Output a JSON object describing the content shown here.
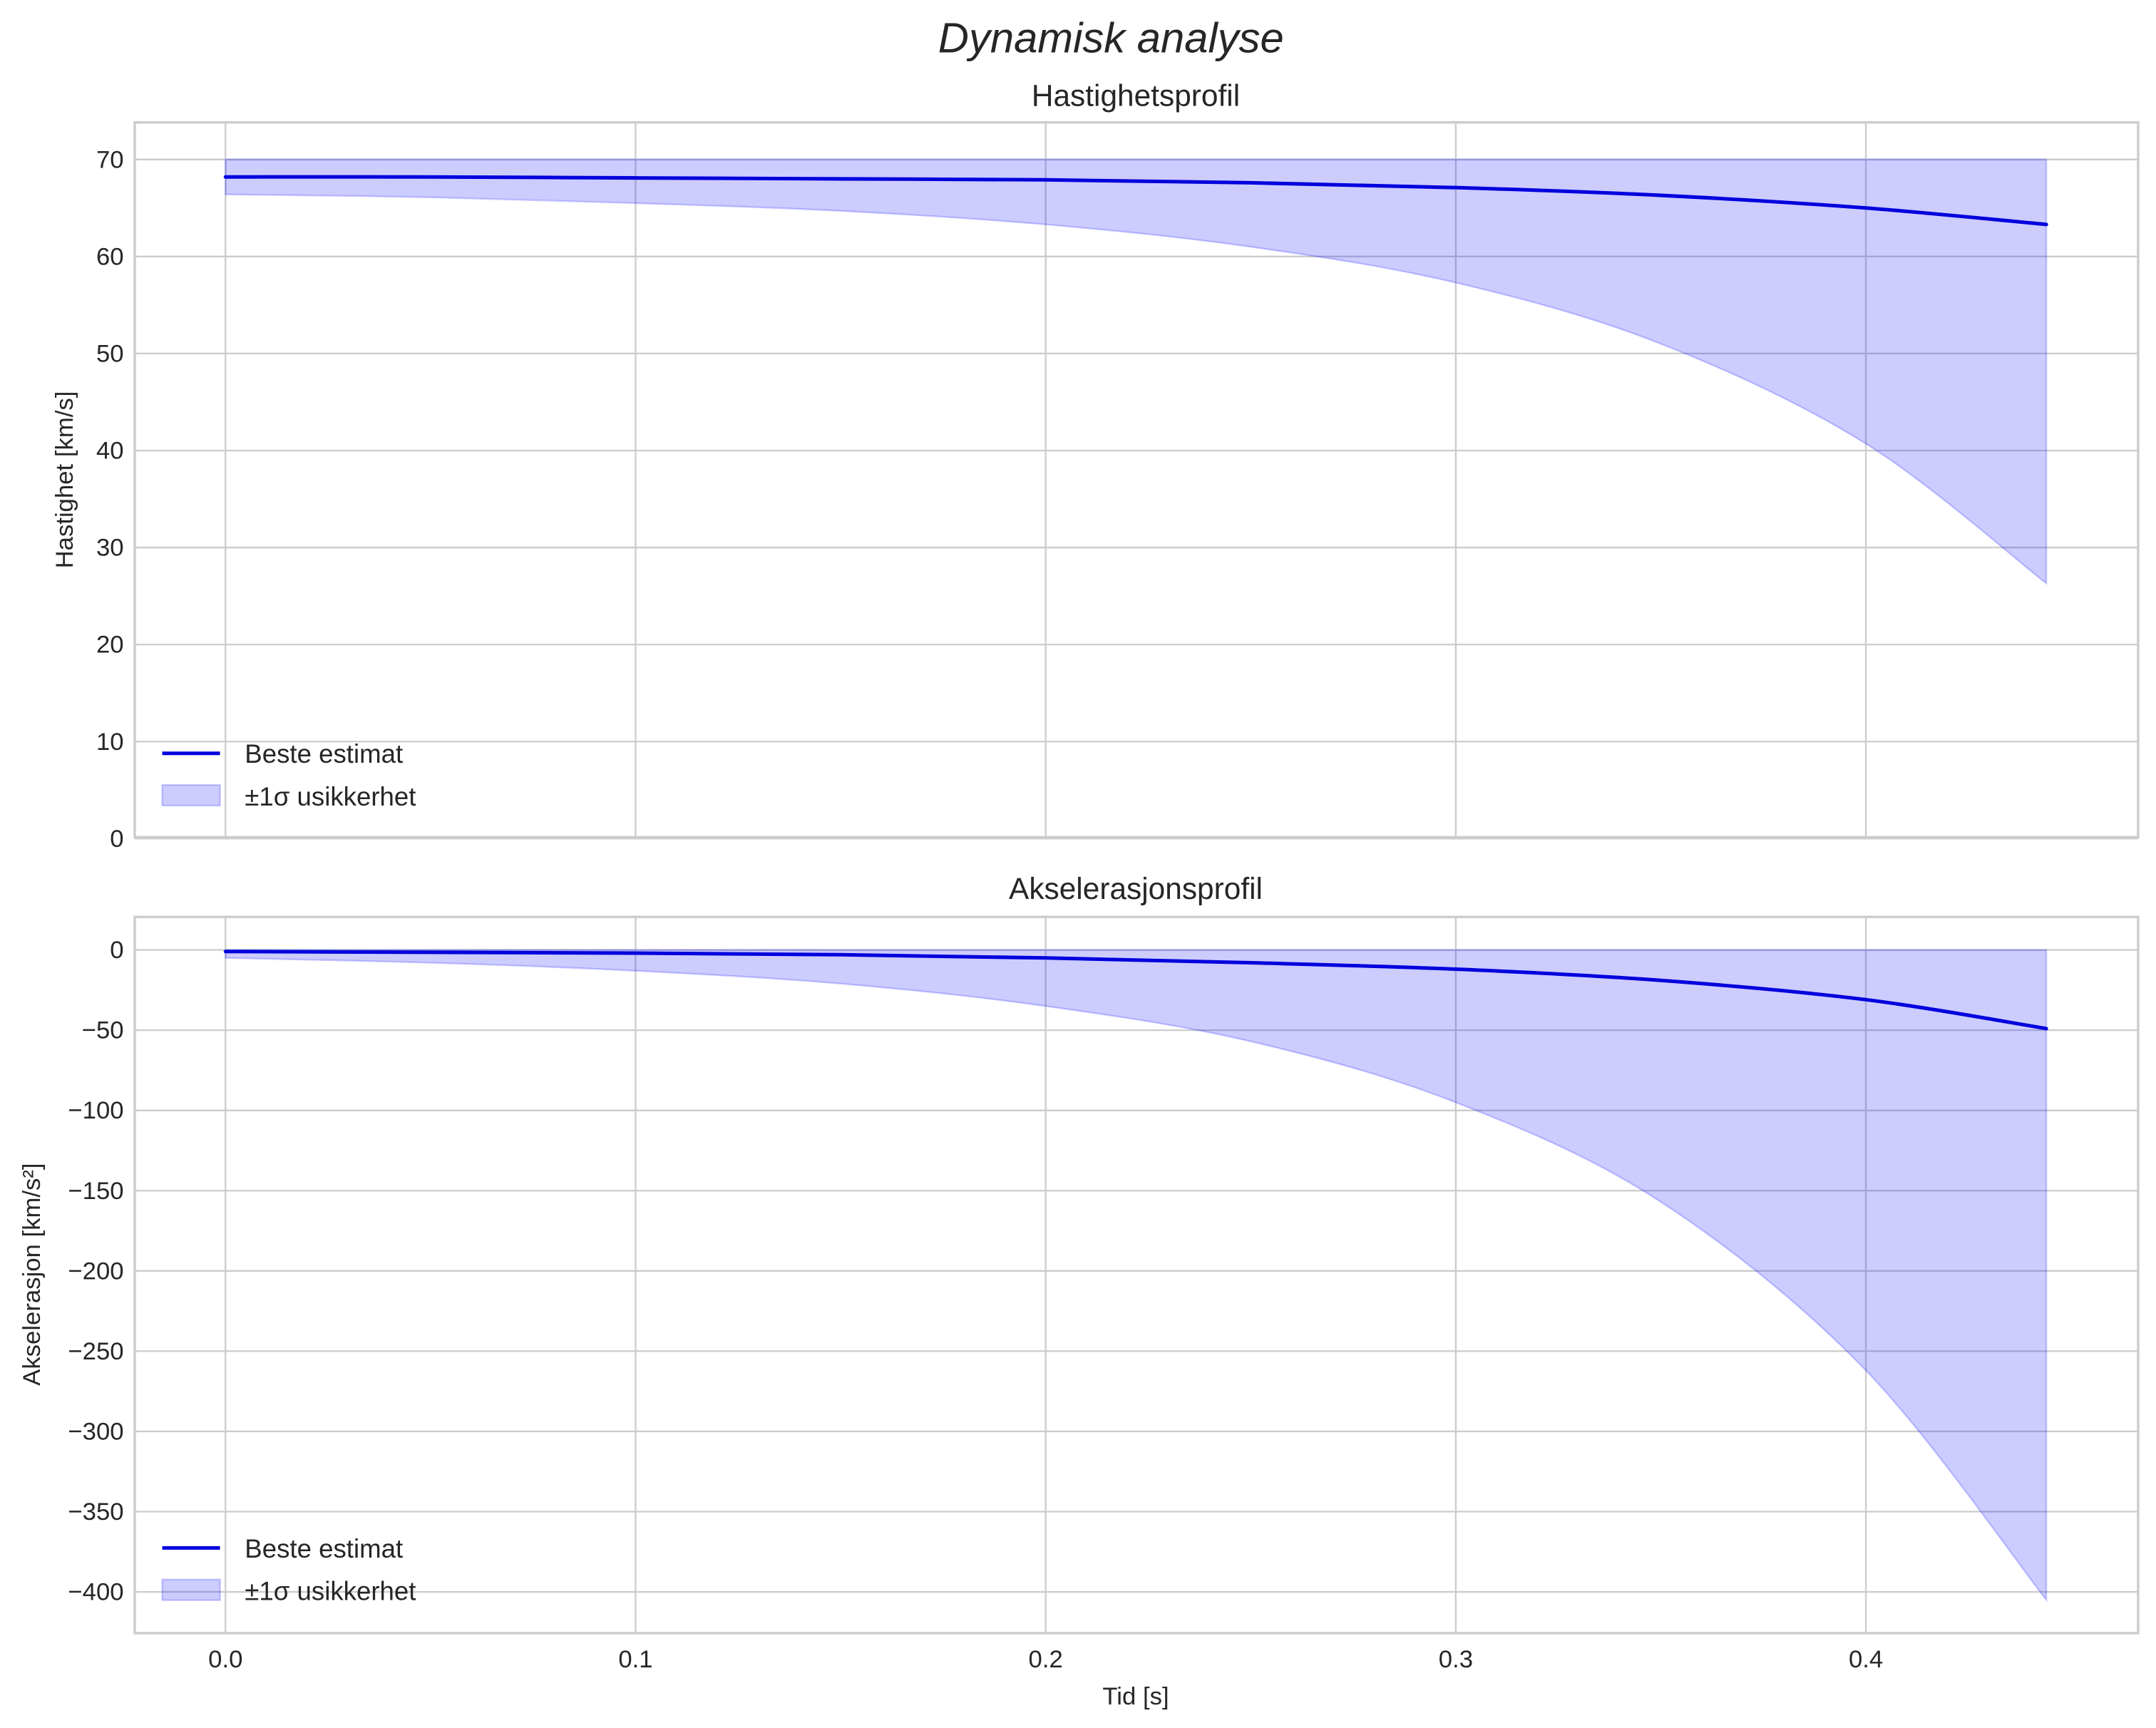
{
  "figure": {
    "suptitle": "Dynamisk analyse",
    "xlabel": "Tid [s]"
  },
  "colors": {
    "line": "#0000dd",
    "band": "#0000ff",
    "grid": "#cccccc",
    "text": "#262626"
  },
  "panels": [
    {
      "title": "Hastighetsprofil",
      "ylabel": "Hastighet [km/s]",
      "yticks": [
        "0",
        "10",
        "20",
        "30",
        "40",
        "50",
        "60",
        "70"
      ],
      "legend": [
        "Beste estimat",
        "±1σ usikkerhet"
      ]
    },
    {
      "title": "Akselerasjonsprofil",
      "ylabel": "Akselerasjon [km/s²]",
      "yticks": [
        "0",
        "−50",
        "−100",
        "−150",
        "−200",
        "−250",
        "−300",
        "−350",
        "−400"
      ],
      "legend": [
        "Beste estimat",
        "±1σ usikkerhet"
      ]
    }
  ],
  "xticks": [
    "0.0",
    "0.1",
    "0.2",
    "0.3",
    "0.4"
  ],
  "chart_data": [
    {
      "type": "line",
      "title": "Hastighetsprofil",
      "xlabel": "",
      "ylabel": "Hastighet [km/s]",
      "xlim": [
        -0.022,
        0.466
      ],
      "ylim": [
        0,
        73.5
      ],
      "grid": true,
      "legend_position": "lower left",
      "x": [
        0.0,
        0.05,
        0.1,
        0.15,
        0.2,
        0.25,
        0.3,
        0.35,
        0.4,
        0.444
      ],
      "series": [
        {
          "name": "Beste estimat",
          "values": [
            68.2,
            68.2,
            68.1,
            68.0,
            67.9,
            67.6,
            67.1,
            66.3,
            65.0,
            63.3
          ]
        },
        {
          "name": "±1σ usikkerhet (nedre)",
          "values": [
            66.4,
            66.1,
            65.5,
            64.7,
            63.3,
            61.0,
            57.3,
            51.0,
            40.7,
            26.3
          ]
        },
        {
          "name": "±1σ usikkerhet (øvre)",
          "values": [
            70,
            70,
            70,
            70,
            70,
            70,
            70,
            70,
            70,
            70
          ]
        }
      ],
      "legend": [
        "Beste estimat",
        "±1σ usikkerhet"
      ]
    },
    {
      "type": "line",
      "title": "Akselerasjonsprofil",
      "xlabel": "Tid [s]",
      "ylabel": "Akselerasjon [km/s²]",
      "xlim": [
        -0.022,
        0.466
      ],
      "ylim": [
        -425,
        20
      ],
      "grid": true,
      "legend_position": "lower left",
      "x": [
        0.0,
        0.05,
        0.1,
        0.15,
        0.2,
        0.25,
        0.3,
        0.35,
        0.4,
        0.444
      ],
      "series": [
        {
          "name": "Beste estimat",
          "values": [
            -1,
            -1.5,
            -2,
            -3,
            -5,
            -8,
            -12,
            -19,
            -31,
            -49
          ]
        },
        {
          "name": "±1σ usikkerhet (nedre)",
          "values": [
            -5,
            -8,
            -13,
            -21,
            -35,
            -57,
            -95,
            -157,
            -262,
            -405
          ]
        },
        {
          "name": "±1σ usikkerhet (øvre)",
          "values": [
            0,
            0,
            0,
            0,
            0,
            0,
            0,
            0,
            0,
            0
          ]
        }
      ],
      "legend": [
        "Beste estimat",
        "±1σ usikkerhet"
      ]
    }
  ]
}
